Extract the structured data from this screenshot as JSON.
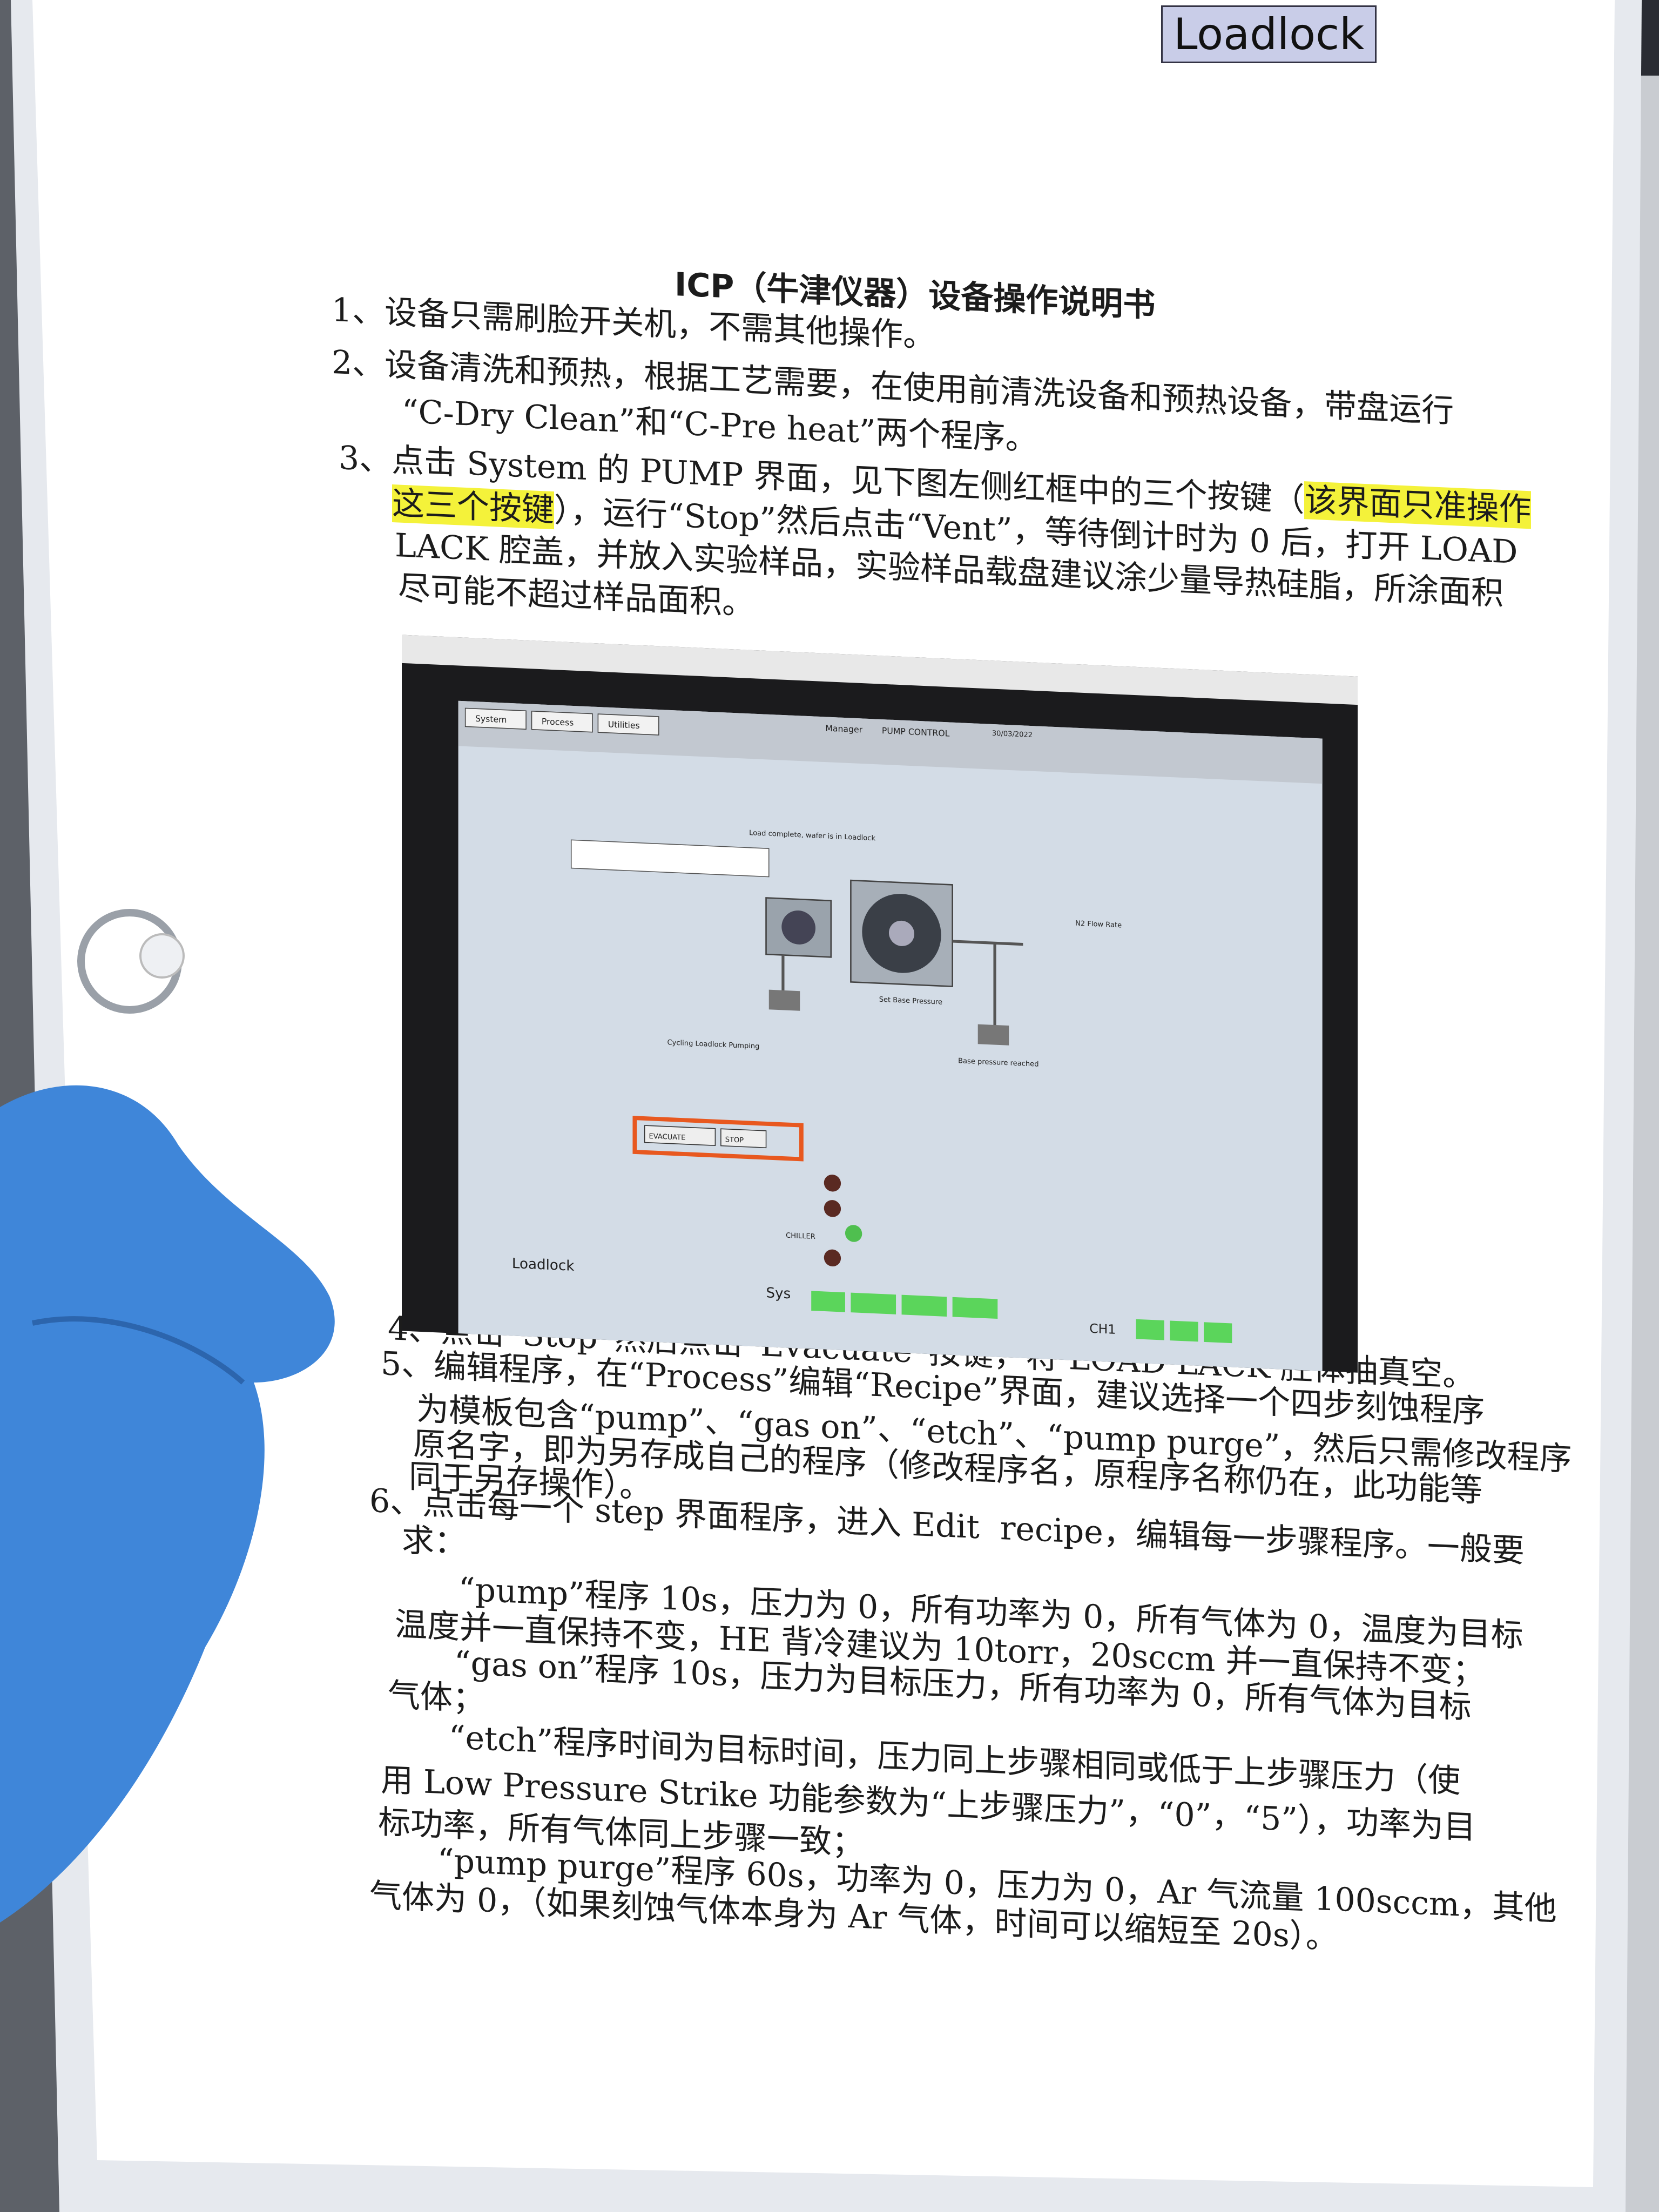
{
  "background": {
    "monitor_label": "Loadlock"
  },
  "document": {
    "title": "ICP（牛津仪器）设备操作说明书",
    "lines": [
      [
        "1、设备只需刷脸开关机，不需其他操作。"
      ],
      [
        "2、设备清洗和预热，根据工艺需要，在使用前清洗设备和预热设备，带盘运行"
      ],
      [
        "“C-Dry Clean”和“C-Pre heat”两个程序。"
      ],
      [
        "3、点击 System 的 PUMP 界面，见下图左侧红框中的三个按键（",
        {
          "text": "该界面只准操作",
          "highlight": true
        }
      ],
      [
        {
          "text": "这三个按键",
          "highlight": true
        },
        "），运行“Stop”然后点击“Vent”，等待倒计时为 0 后，打开 LOAD"
      ],
      [
        "LACK 腔盖，并放入实验样品，实验样品载盘建议涂少量导热硅脂，所涂面积"
      ],
      [
        "尽可能不超过样品面积。"
      ],
      [
        "4、点击“Stop”然后点击“Evacuate”按键，将 LOAD LACK 腔体抽真空。"
      ],
      [
        "5、编辑程序，在“Process”编辑“Recipe”界面，建议选择一个四步刻蚀程序"
      ],
      [
        "为模板包含“pump”、“gas on”、“etch”、“pump purge”，然后只需修改程序"
      ],
      [
        "原名字，即为另存成自己的程序（修改程序名，原程序名称仍在，此功能等"
      ],
      [
        "同于另存操作）。"
      ],
      [
        "6、点击每一个 step 界面程序，进入 Edit  recipe，编辑每一步骤程序。一般要"
      ],
      [
        "求："
      ],
      [
        "“pump”程序 10s，压力为 0，所有功率为 0，所有气体为 0，温度为目标"
      ],
      [
        "温度并一直保持不变，HE 背冷建议为 10torr，20sccm 并一直保持不变；"
      ],
      [
        "“gas on”程序 10s，压力为目标压力，所有功率为 0，所有气体为目标"
      ],
      [
        "气体；"
      ],
      [
        "“etch”程序时间为目标时间，压力同上步骤相同或低于上步骤压力（使"
      ],
      [
        "用 Low Pressure Strike 功能参数为“上步骤压力”，“0”，“5”），功率为目"
      ],
      [
        "标功率，所有气体同上步骤一致；"
      ],
      [
        "“pump purge”程序 60s，功率为 0，压力为 0，Ar 气流量 100sccm，其他"
      ],
      [
        "气体为 0，（如果刻蚀气体本身为 Ar 气体，时间可以缩短至 20s）。"
      ]
    ]
  },
  "screenshot": {
    "tabs": [
      "System",
      "Process",
      "Utilities"
    ],
    "manager": "Manager",
    "screen_name": "PUMP CONTROL",
    "date": "30/03/2022",
    "status": "Load complete, wafer is in Loadlock",
    "flow_label": "N2 Flow Rate",
    "set_base": "Set Base Pressure",
    "cycling": "Cycling Loadlock Pumping",
    "base_reached": "Base pressure reached",
    "buttons": [
      "EVACUATE",
      "STOP"
    ],
    "chiller": "CHILLER",
    "loadlock": "Loadlock",
    "sys": "Sys",
    "ch1": "CH1"
  }
}
